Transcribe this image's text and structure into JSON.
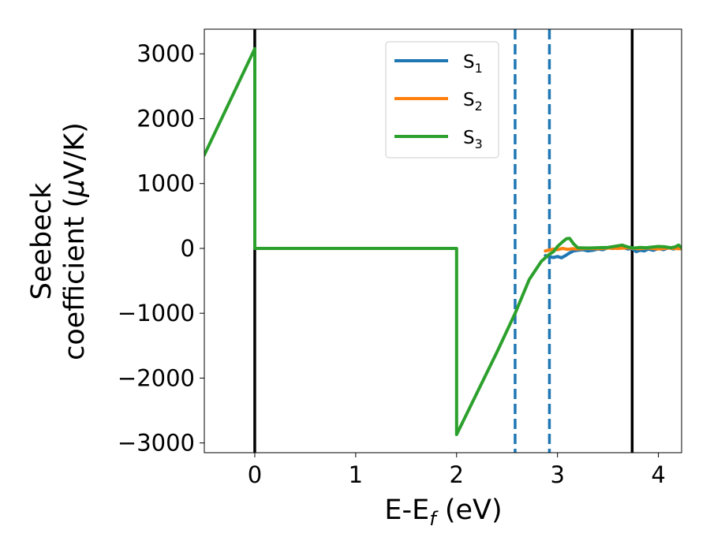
{
  "chart_data": {
    "type": "line",
    "xlabel": {
      "main": "E-E",
      "sub": "f",
      "rest": " (eV)"
    },
    "ylabel": {
      "line1": "Seebeck",
      "line2_prefix": "coefficient  (",
      "mu": "μ",
      "line2_suffix": "V/K)"
    },
    "xlim": [
      -0.5,
      4.23
    ],
    "ylim": [
      -3150,
      3380
    ],
    "xticks": [
      {
        "value": 0,
        "label": "0"
      },
      {
        "value": 1,
        "label": "1"
      },
      {
        "value": 2,
        "label": "2"
      },
      {
        "value": 3,
        "label": "3"
      },
      {
        "value": 4,
        "label": "4"
      }
    ],
    "yticks": [
      {
        "value": 3000,
        "label": "3000"
      },
      {
        "value": 2000,
        "label": "2000"
      },
      {
        "value": 1000,
        "label": "1000"
      },
      {
        "value": 0,
        "label": "0"
      },
      {
        "value": -1000,
        "label": "−1000"
      },
      {
        "value": -2000,
        "label": "−2000"
      },
      {
        "value": -3000,
        "label": "−3000"
      }
    ],
    "grid": false,
    "legend": {
      "placement": "upper-center"
    },
    "vlines": [
      {
        "x": 0,
        "style": "solid",
        "color": "#000000"
      },
      {
        "x": 3.74,
        "style": "solid",
        "color": "#000000"
      },
      {
        "x": 2.58,
        "style": "dashed",
        "color": "#1f77b4"
      },
      {
        "x": 2.92,
        "style": "dashed",
        "color": "#1f77b4"
      }
    ],
    "series": [
      {
        "name": "S",
        "sub": "1",
        "color": "#1f77b4",
        "x": [
          2.88,
          2.92,
          2.96,
          3.0,
          3.04,
          3.08,
          3.12,
          3.16,
          3.2,
          3.25,
          3.3,
          3.35,
          3.4,
          3.45,
          3.5,
          3.55,
          3.6,
          3.65,
          3.7,
          3.74,
          3.78,
          3.82,
          3.86,
          3.9,
          3.95,
          4.0,
          4.05,
          4.1,
          4.15,
          4.2,
          4.23
        ],
        "y": [
          -110,
          -130,
          -140,
          -125,
          -145,
          -110,
          -70,
          -40,
          -30,
          -20,
          -40,
          -30,
          -10,
          -20,
          10,
          0,
          20,
          10,
          -10,
          0,
          -50,
          -30,
          -40,
          -10,
          -30,
          0,
          -20,
          10,
          -10,
          20,
          -10
        ]
      },
      {
        "name": "S",
        "sub": "2",
        "color": "#ff7f0e",
        "x": [
          2.88,
          2.92,
          2.96,
          3.0,
          3.05,
          3.1,
          3.15,
          3.2,
          3.3,
          3.4,
          3.5,
          3.6,
          3.7,
          3.8,
          3.9,
          4.0,
          4.1,
          4.2,
          4.23
        ],
        "y": [
          -40,
          -25,
          -10,
          -20,
          0,
          -15,
          -5,
          -10,
          0,
          -5,
          5,
          0,
          10,
          -5,
          5,
          -10,
          5,
          -5,
          0
        ]
      },
      {
        "name": "S",
        "sub": "3",
        "color": "#2ca02c",
        "x": [
          -0.5,
          0.0,
          0.0,
          2.0,
          2.0,
          2.4,
          2.58,
          2.72,
          2.84,
          2.92,
          2.96,
          3.0,
          3.05,
          3.09,
          3.12,
          3.16,
          3.2,
          3.3,
          3.4,
          3.5,
          3.58,
          3.64,
          3.7,
          3.76,
          3.82,
          3.88,
          3.94,
          4.0,
          4.06,
          4.12,
          4.16,
          4.2,
          4.23
        ],
        "y": [
          1440,
          3080,
          0,
          0,
          -2870,
          -1600,
          -1000,
          -480,
          -200,
          -90,
          -50,
          30,
          100,
          150,
          155,
          70,
          10,
          5,
          10,
          15,
          35,
          50,
          20,
          5,
          15,
          10,
          20,
          30,
          25,
          10,
          20,
          50,
          10
        ]
      }
    ]
  }
}
